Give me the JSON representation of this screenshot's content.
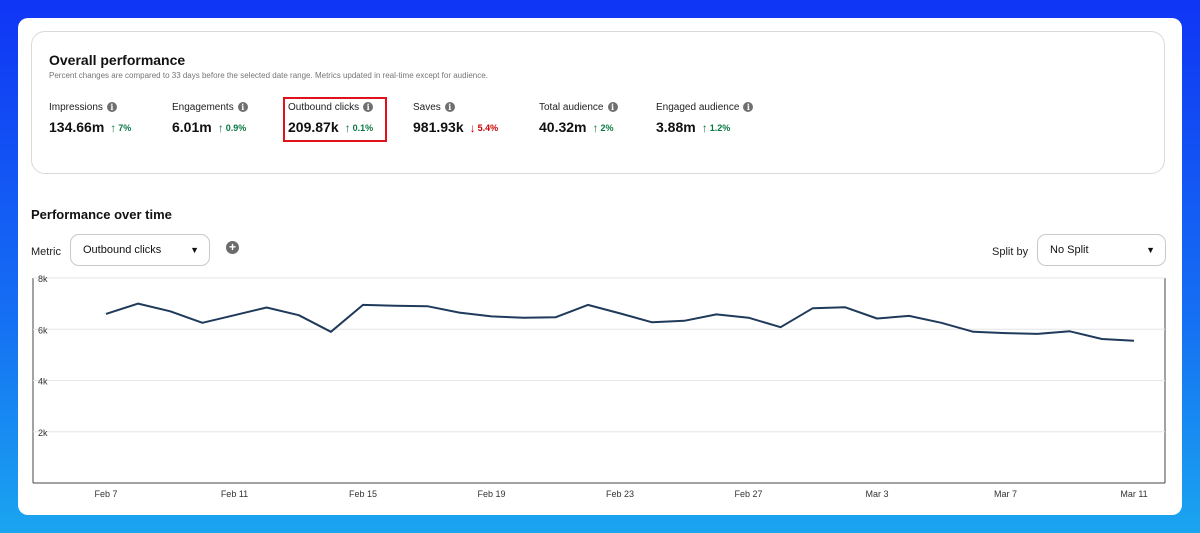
{
  "overall": {
    "title": "Overall performance",
    "subtitle": "Percent changes are compared to 33 days before the selected date range. Metrics updated in real-time except for audience.",
    "metrics": [
      {
        "label": "Impressions",
        "value": "134.66m",
        "change": "7%",
        "direction": "up"
      },
      {
        "label": "Engagements",
        "value": "6.01m",
        "change": "0.9%",
        "direction": "up"
      },
      {
        "label": "Outbound clicks",
        "value": "209.87k",
        "change": "0.1%",
        "direction": "up"
      },
      {
        "label": "Saves",
        "value": "981.93k",
        "change": "5.4%",
        "direction": "down"
      },
      {
        "label": "Total audience",
        "value": "40.32m",
        "change": "2%",
        "direction": "up"
      },
      {
        "label": "Engaged audience",
        "value": "3.88m",
        "change": "1.2%",
        "direction": "up"
      }
    ],
    "info_icon_glyph": "i",
    "up_icon": "↑",
    "down_icon": "↓",
    "colors": {
      "up": "#0a7a44",
      "down": "#cc0000",
      "highlight": "#e0131d"
    }
  },
  "performance": {
    "title": "Performance over time",
    "metric_label": "Metric",
    "metric_value": "Outbound clicks",
    "split_label": "Split by",
    "split_value": "No Split",
    "add_icon": "+",
    "chevron_icon": "⌄"
  },
  "chart_data": {
    "type": "line",
    "x": [
      "Feb 7",
      "Feb 8",
      "Feb 9",
      "Feb 10",
      "Feb 11",
      "Feb 12",
      "Feb 13",
      "Feb 14",
      "Feb 15",
      "Feb 16",
      "Feb 17",
      "Feb 18",
      "Feb 19",
      "Feb 20",
      "Feb 21",
      "Feb 22",
      "Feb 23",
      "Feb 24",
      "Feb 25",
      "Feb 26",
      "Feb 27",
      "Feb 28",
      "Mar 1",
      "Mar 2",
      "Mar 3",
      "Mar 4",
      "Mar 5",
      "Mar 6",
      "Mar 7",
      "Mar 8",
      "Mar 9",
      "Mar 10",
      "Mar 11"
    ],
    "x_tick_labels": [
      "Feb 7",
      "Feb 11",
      "Feb 15",
      "Feb 19",
      "Feb 23",
      "Feb 27",
      "Mar 3",
      "Mar 7",
      "Mar 11"
    ],
    "series": [
      {
        "values": [
          6600,
          7000,
          6700,
          6250,
          6550,
          6850,
          6550,
          5900,
          6950,
          6920,
          6900,
          6650,
          6500,
          6450,
          6470,
          6950,
          6620,
          6270,
          6330,
          6580,
          6450,
          6080,
          6820,
          6860,
          6420,
          6520,
          6250,
          5900,
          5850,
          5820,
          5920,
          5620,
          5550
        ]
      }
    ],
    "y_ticks": [
      "8k",
      "6k",
      "4k",
      "2k"
    ],
    "y_tick_values": [
      8000,
      6000,
      4000,
      2000
    ],
    "ylim": [
      0,
      8000
    ],
    "grid": true,
    "line_color": "#1f3a5a"
  }
}
